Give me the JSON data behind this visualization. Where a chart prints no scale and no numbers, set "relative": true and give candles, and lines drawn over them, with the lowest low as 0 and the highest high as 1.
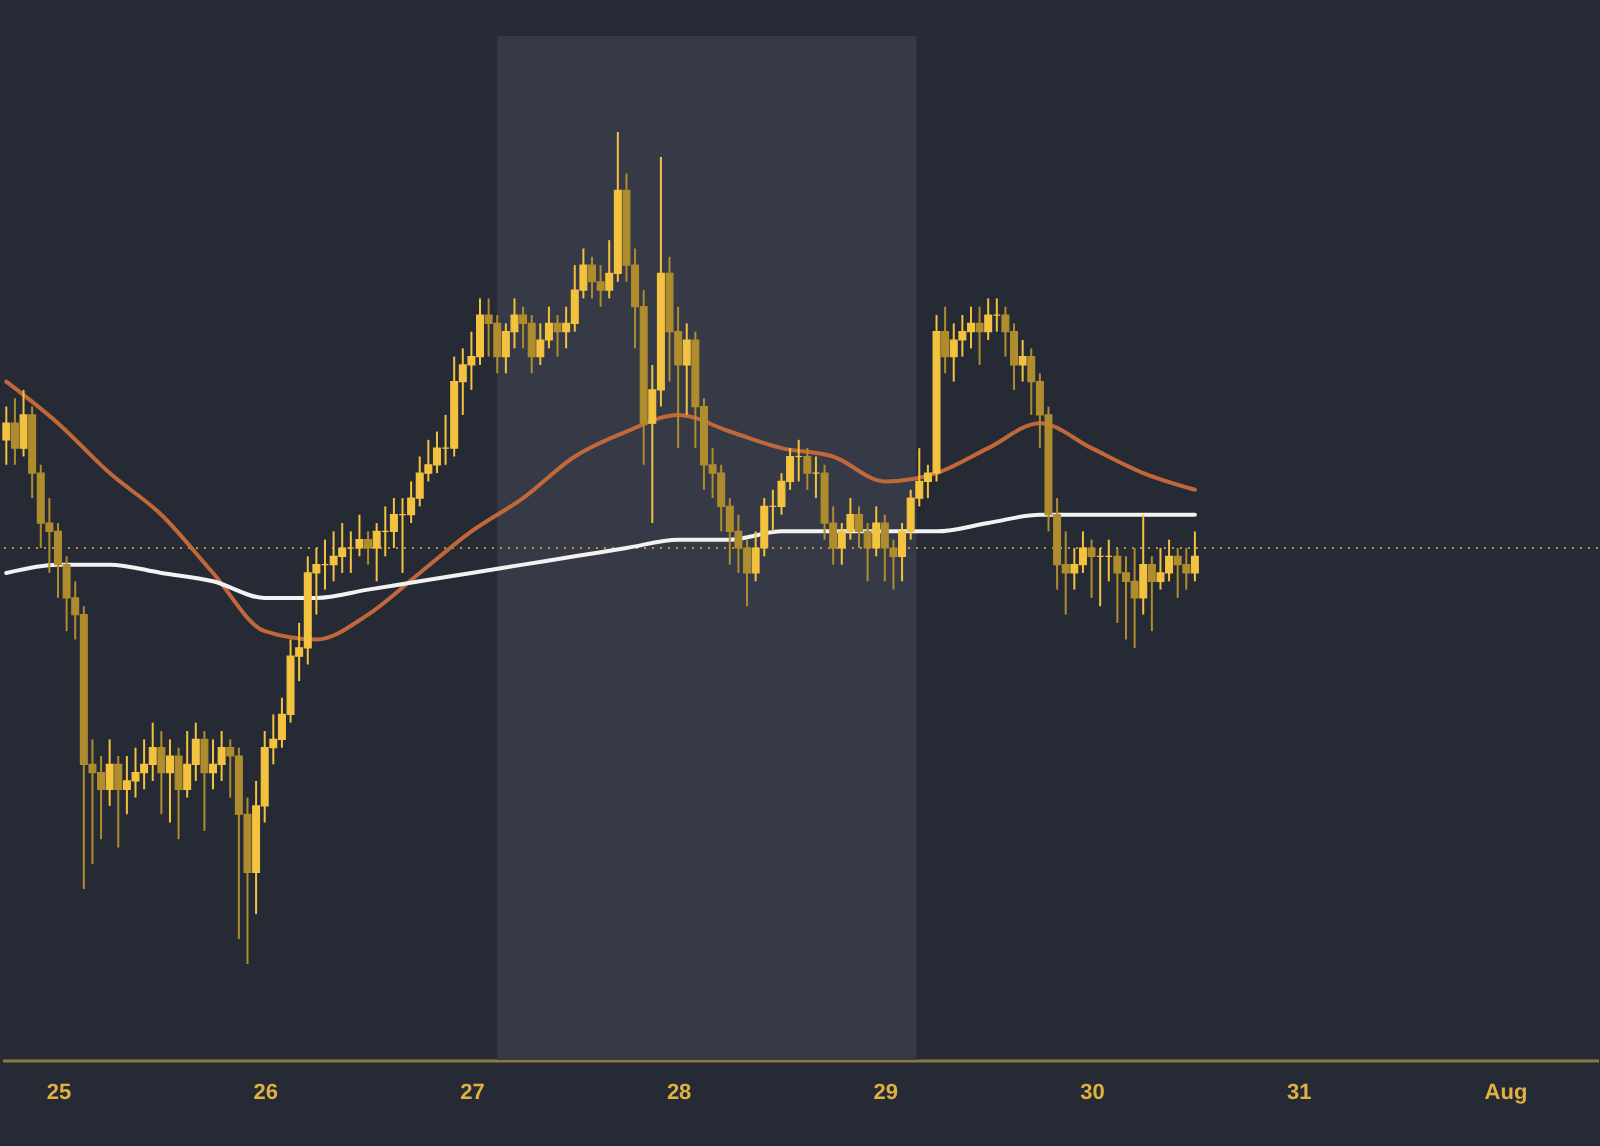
{
  "chart_data": {
    "type": "candlestick",
    "relative": true,
    "xlim": [
      "--07-24T17:30",
      "--08-01T10:48"
    ],
    "xticks": [
      {
        "value": "--07-25",
        "label": "25"
      },
      {
        "value": "--07-26",
        "label": "26"
      },
      {
        "value": "--07-27",
        "label": "27"
      },
      {
        "value": "--07-28",
        "label": "28"
      },
      {
        "value": "--07-29",
        "label": "29"
      },
      {
        "value": "--07-30",
        "label": "30"
      },
      {
        "value": "--07-31",
        "label": "31"
      },
      {
        "value": "--08-01",
        "label": "Aug"
      }
    ],
    "bands": [
      {
        "axis": "x",
        "from": "--07-27T03:00",
        "to": "--07-29T03:40",
        "color": "#353a46"
      }
    ],
    "ref_lines": [
      {
        "axis": "y",
        "value": 0.5,
        "color": "#c98a3c",
        "line_style": "dotted"
      }
    ],
    "series": [
      {
        "type": "line",
        "color": "#c0683a",
        "x": [
          "--07-24T18:00",
          "--07-25T00:00",
          "--07-25T06:00",
          "--07-25T12:00",
          "--07-25T18:00",
          "--07-26T00:00",
          "--07-26T06:00",
          "--07-26T12:00",
          "--07-26T18:00",
          "--07-27T00:00",
          "--07-27T06:00",
          "--07-27T12:00",
          "--07-27T18:00",
          "--07-28T00:00",
          "--07-28T06:00",
          "--07-28T12:00",
          "--07-28T18:00",
          "--07-29T00:00",
          "--07-29T06:00",
          "--07-29T12:00",
          "--07-29T18:00",
          "--07-30T00:00",
          "--07-30T06:00",
          "--07-30T12:00"
        ],
        "values": [
          0.7,
          0.65,
          0.59,
          0.54,
          0.47,
          0.4,
          0.39,
          0.42,
          0.47,
          0.52,
          0.56,
          0.61,
          0.64,
          0.66,
          0.64,
          0.62,
          0.61,
          0.58,
          0.59,
          0.62,
          0.65,
          0.62,
          0.59,
          0.57
        ]
      },
      {
        "type": "line",
        "color": "#f2f2f2",
        "x": [
          "--07-24T18:00",
          "--07-25T00:00",
          "--07-25T06:00",
          "--07-25T12:00",
          "--07-25T18:00",
          "--07-26T00:00",
          "--07-26T06:00",
          "--07-26T12:00",
          "--07-26T18:00",
          "--07-27T00:00",
          "--07-27T06:00",
          "--07-27T12:00",
          "--07-27T18:00",
          "--07-28T00:00",
          "--07-28T06:00",
          "--07-28T12:00",
          "--07-28T18:00",
          "--07-29T00:00",
          "--07-29T06:00",
          "--07-29T12:00",
          "--07-29T18:00",
          "--07-30T00:00",
          "--07-30T06:00",
          "--07-30T12:00"
        ],
        "values": [
          0.47,
          0.48,
          0.48,
          0.47,
          0.46,
          0.44,
          0.44,
          0.45,
          0.46,
          0.47,
          0.48,
          0.49,
          0.5,
          0.51,
          0.51,
          0.52,
          0.52,
          0.52,
          0.52,
          0.53,
          0.54,
          0.54,
          0.54,
          0.54
        ]
      },
      {
        "colors": [
          "#f3c23f",
          "#af8c2d",
          "#f3c23f",
          "#af8c2d",
          "#af8c2d",
          "#af8c2d",
          "#af8c2d",
          "#af8c2d",
          "#af8c2d",
          "#af8c2d",
          "#af8c2d",
          "#af8c2d",
          "#f3c23f",
          "#af8c2d",
          "#f3c23f",
          "#f3c23f",
          "#f3c23f",
          "#f3c23f",
          "#af8c2d",
          "#f3c23f",
          "#af8c2d",
          "#f3c23f",
          "#f3c23f",
          "#af8c2d",
          "#f3c23f",
          "#f3c23f",
          "#af8c2d",
          "#af8c2d",
          "#af8c2d",
          "#f3c23f",
          "#f3c23f",
          "#f3c23f",
          "#f3c23f",
          "#f3c23f",
          "#f3c23f",
          "#f3c23f",
          "#f3c23f",
          "#f3c23f",
          "#f3c23f",
          "#f3c23f",
          "#f3c23f",
          "#f3c23f",
          "#af8c2d",
          "#f3c23f",
          "#f3c23f",
          "#f3c23f",
          "#f3c23f",
          "#f3c23f",
          "#f3c23f",
          "#f3c23f",
          "#f3c23f",
          "#f3c23f",
          "#f3c23f",
          "#f3c23f",
          "#f3c23f",
          "#f3c23f",
          "#af8c2d",
          "#af8c2d",
          "#f3c23f",
          "#f3c23f",
          "#af8c2d",
          "#af8c2d",
          "#f3c23f",
          "#f3c23f",
          "#af8c2d",
          "#f3c23f",
          "#f3c23f",
          "#f3c23f",
          "#af8c2d",
          "#af8c2d",
          "#f3c23f",
          "#f3c23f",
          "#af8c2d",
          "#af8c2d",
          "#af8c2d",
          "#f3c23f",
          "#f3c23f",
          "#af8c2d",
          "#af8c2d",
          "#f3c23f",
          "#af8c2d",
          "#af8c2d",
          "#af8c2d",
          "#af8c2d",
          "#af8c2d",
          "#af8c2d",
          "#af8c2d",
          "#f3c23f",
          "#f3c23f",
          "#f3c23f",
          "#f3c23f",
          "#f3c23f",
          "#f3c23f",
          "#af8c2d",
          "#f3c23f",
          "#af8c2d",
          "#af8c2d",
          "#f3c23f",
          "#f3c23f",
          "#af8c2d",
          "#af8c2d",
          "#f3c23f",
          "#af8c2d",
          "#af8c2d",
          "#f3c23f",
          "#f3c23f",
          "#f3c23f",
          "#f3c23f",
          "#f3c23f",
          "#af8c2d",
          "#f3c23f",
          "#f3c23f",
          "#f3c23f",
          "#af8c2d",
          "#f3c23f",
          "#f3c23f",
          "#af8c2d",
          "#af8c2d",
          "#f3c23f",
          "#af8c2d",
          "#af8c2d",
          "#af8c2d",
          "#af8c2d",
          "#af8c2d",
          "#f3c23f",
          "#f3c23f",
          "#af8c2d",
          "#f3c23f",
          "#f3c23f",
          "#af8c2d",
          "#af8c2d",
          "#af8c2d",
          "#f3c23f",
          "#af8c2d",
          "#f3c23f",
          "#f3c23f",
          "#af8c2d",
          "#af8c2d",
          "#f3c23f"
        ],
        "x": [
          "--07-24T18:00",
          "--07-24T19:00",
          "--07-24T20:00",
          "--07-24T21:00",
          "--07-24T22:00",
          "--07-24T23:00",
          "--07-25T00:00",
          "--07-25T01:00",
          "--07-25T02:00",
          "--07-25T03:00",
          "--07-25T04:00",
          "--07-25T05:00",
          "--07-25T06:00",
          "--07-25T07:00",
          "--07-25T08:00",
          "--07-25T09:00",
          "--07-25T10:00",
          "--07-25T11:00",
          "--07-25T12:00",
          "--07-25T13:00",
          "--07-25T14:00",
          "--07-25T15:00",
          "--07-25T16:00",
          "--07-25T17:00",
          "--07-25T18:00",
          "--07-25T19:00",
          "--07-25T20:00",
          "--07-25T21:00",
          "--07-25T22:00",
          "--07-25T23:00",
          "--07-26T00:00",
          "--07-26T01:00",
          "--07-26T02:00",
          "--07-26T03:00",
          "--07-26T04:00",
          "--07-26T05:00",
          "--07-26T06:00",
          "--07-26T07:00",
          "--07-26T08:00",
          "--07-26T09:00",
          "--07-26T10:00",
          "--07-26T11:00",
          "--07-26T12:00",
          "--07-26T13:00",
          "--07-26T14:00",
          "--07-26T15:00",
          "--07-26T16:00",
          "--07-26T17:00",
          "--07-26T18:00",
          "--07-26T19:00",
          "--07-26T20:00",
          "--07-26T21:00",
          "--07-26T22:00",
          "--07-26T23:00",
          "--07-27T00:00",
          "--07-27T01:00",
          "--07-27T02:00",
          "--07-27T03:00",
          "--07-27T04:00",
          "--07-27T05:00",
          "--07-27T06:00",
          "--07-27T07:00",
          "--07-27T08:00",
          "--07-27T09:00",
          "--07-27T10:00",
          "--07-27T11:00",
          "--07-27T12:00",
          "--07-27T13:00",
          "--07-27T14:00",
          "--07-27T15:00",
          "--07-27T16:00",
          "--07-27T17:00",
          "--07-27T18:00",
          "--07-27T19:00",
          "--07-27T20:00",
          "--07-27T21:00",
          "--07-27T22:00",
          "--07-27T23:00",
          "--07-28T00:00",
          "--07-28T01:00",
          "--07-28T02:00",
          "--07-28T03:00",
          "--07-28T04:00",
          "--07-28T05:00",
          "--07-28T06:00",
          "--07-28T07:00",
          "--07-28T08:00",
          "--07-28T09:00",
          "--07-28T10:00",
          "--07-28T11:00",
          "--07-28T12:00",
          "--07-28T13:00",
          "--07-28T14:00",
          "--07-28T15:00",
          "--07-28T16:00",
          "--07-28T17:00",
          "--07-28T18:00",
          "--07-28T19:00",
          "--07-28T20:00",
          "--07-28T21:00",
          "--07-28T22:00",
          "--07-28T23:00",
          "--07-29T00:00",
          "--07-29T01:00",
          "--07-29T02:00",
          "--07-29T03:00",
          "--07-29T04:00",
          "--07-29T05:00",
          "--07-29T06:00",
          "--07-29T07:00",
          "--07-29T08:00",
          "--07-29T09:00",
          "--07-29T10:00",
          "--07-29T11:00",
          "--07-29T12:00",
          "--07-29T13:00",
          "--07-29T14:00",
          "--07-29T15:00",
          "--07-29T16:00",
          "--07-29T17:00",
          "--07-29T18:00",
          "--07-29T19:00",
          "--07-29T20:00",
          "--07-29T21:00",
          "--07-29T22:00",
          "--07-29T23:00",
          "--07-30T00:00",
          "--07-30T01:00",
          "--07-30T02:00",
          "--07-30T03:00",
          "--07-30T04:00",
          "--07-30T05:00",
          "--07-30T06:00",
          "--07-30T07:00",
          "--07-30T08:00",
          "--07-30T09:00",
          "--07-30T10:00",
          "--07-30T11:00",
          "--07-30T12:00"
        ],
        "ohlc": [
          [
            0.63,
            0.67,
            0.6,
            0.65
          ],
          [
            0.65,
            0.68,
            0.6,
            0.62
          ],
          [
            0.62,
            0.69,
            0.61,
            0.66
          ],
          [
            0.66,
            0.67,
            0.56,
            0.59
          ],
          [
            0.59,
            0.6,
            0.5,
            0.53
          ],
          [
            0.53,
            0.56,
            0.47,
            0.52
          ],
          [
            0.52,
            0.53,
            0.44,
            0.48
          ],
          [
            0.48,
            0.49,
            0.4,
            0.44
          ],
          [
            0.44,
            0.46,
            0.39,
            0.42
          ],
          [
            0.42,
            0.43,
            0.09,
            0.24
          ],
          [
            0.24,
            0.27,
            0.12,
            0.23
          ],
          [
            0.23,
            0.25,
            0.15,
            0.21
          ],
          [
            0.21,
            0.27,
            0.19,
            0.24
          ],
          [
            0.24,
            0.25,
            0.14,
            0.21
          ],
          [
            0.21,
            0.25,
            0.18,
            0.22
          ],
          [
            0.22,
            0.26,
            0.2,
            0.23
          ],
          [
            0.23,
            0.27,
            0.21,
            0.24
          ],
          [
            0.24,
            0.29,
            0.22,
            0.26
          ],
          [
            0.26,
            0.28,
            0.18,
            0.23
          ],
          [
            0.23,
            0.27,
            0.17,
            0.25
          ],
          [
            0.25,
            0.26,
            0.15,
            0.21
          ],
          [
            0.21,
            0.28,
            0.2,
            0.24
          ],
          [
            0.24,
            0.29,
            0.22,
            0.27
          ],
          [
            0.27,
            0.28,
            0.16,
            0.23
          ],
          [
            0.23,
            0.27,
            0.21,
            0.24
          ],
          [
            0.24,
            0.28,
            0.22,
            0.26
          ],
          [
            0.26,
            0.27,
            0.2,
            0.25
          ],
          [
            0.25,
            0.26,
            0.03,
            0.18
          ],
          [
            0.18,
            0.2,
            0,
            0.11
          ],
          [
            0.11,
            0.22,
            0.06,
            0.19
          ],
          [
            0.19,
            0.28,
            0.17,
            0.26
          ],
          [
            0.26,
            0.3,
            0.24,
            0.27
          ],
          [
            0.27,
            0.32,
            0.26,
            0.3
          ],
          [
            0.3,
            0.39,
            0.29,
            0.37
          ],
          [
            0.37,
            0.41,
            0.34,
            0.38
          ],
          [
            0.38,
            0.49,
            0.36,
            0.47
          ],
          [
            0.47,
            0.5,
            0.42,
            0.48
          ],
          [
            0.48,
            0.51,
            0.45,
            0.48
          ],
          [
            0.48,
            0.52,
            0.46,
            0.49
          ],
          [
            0.49,
            0.53,
            0.47,
            0.5
          ],
          [
            0.5,
            0.52,
            0.47,
            0.5
          ],
          [
            0.5,
            0.54,
            0.49,
            0.51
          ],
          [
            0.51,
            0.52,
            0.48,
            0.5
          ],
          [
            0.5,
            0.53,
            0.46,
            0.52
          ],
          [
            0.52,
            0.55,
            0.49,
            0.52
          ],
          [
            0.52,
            0.56,
            0.5,
            0.54
          ],
          [
            0.54,
            0.56,
            0.47,
            0.54
          ],
          [
            0.54,
            0.58,
            0.53,
            0.56
          ],
          [
            0.56,
            0.61,
            0.55,
            0.59
          ],
          [
            0.59,
            0.63,
            0.58,
            0.6
          ],
          [
            0.6,
            0.64,
            0.59,
            0.62
          ],
          [
            0.62,
            0.66,
            0.6,
            0.62
          ],
          [
            0.62,
            0.73,
            0.61,
            0.7
          ],
          [
            0.7,
            0.74,
            0.66,
            0.72
          ],
          [
            0.72,
            0.76,
            0.69,
            0.73
          ],
          [
            0.73,
            0.8,
            0.72,
            0.78
          ],
          [
            0.78,
            0.8,
            0.73,
            0.77
          ],
          [
            0.77,
            0.78,
            0.71,
            0.73
          ],
          [
            0.73,
            0.77,
            0.71,
            0.76
          ],
          [
            0.76,
            0.8,
            0.74,
            0.78
          ],
          [
            0.78,
            0.79,
            0.74,
            0.77
          ],
          [
            0.77,
            0.78,
            0.71,
            0.73
          ],
          [
            0.73,
            0.77,
            0.72,
            0.75
          ],
          [
            0.75,
            0.79,
            0.74,
            0.77
          ],
          [
            0.77,
            0.78,
            0.73,
            0.76
          ],
          [
            0.76,
            0.79,
            0.74,
            0.77
          ],
          [
            0.77,
            0.84,
            0.76,
            0.81
          ],
          [
            0.81,
            0.86,
            0.8,
            0.84
          ],
          [
            0.84,
            0.85,
            0.8,
            0.82
          ],
          [
            0.82,
            0.84,
            0.79,
            0.81
          ],
          [
            0.81,
            0.87,
            0.8,
            0.83
          ],
          [
            0.83,
            1,
            0.82,
            0.93
          ],
          [
            0.93,
            0.95,
            0.82,
            0.84
          ],
          [
            0.84,
            0.86,
            0.74,
            0.79
          ],
          [
            0.79,
            0.81,
            0.6,
            0.65
          ],
          [
            0.65,
            0.72,
            0.53,
            0.69
          ],
          [
            0.69,
            0.97,
            0.67,
            0.83
          ],
          [
            0.83,
            0.85,
            0.7,
            0.76
          ],
          [
            0.76,
            0.79,
            0.62,
            0.72
          ],
          [
            0.72,
            0.77,
            0.66,
            0.75
          ],
          [
            0.75,
            0.76,
            0.62,
            0.67
          ],
          [
            0.67,
            0.68,
            0.57,
            0.6
          ],
          [
            0.6,
            0.62,
            0.56,
            0.59
          ],
          [
            0.59,
            0.6,
            0.52,
            0.55
          ],
          [
            0.55,
            0.56,
            0.48,
            0.52
          ],
          [
            0.52,
            0.54,
            0.47,
            0.5
          ],
          [
            0.5,
            0.51,
            0.43,
            0.47
          ],
          [
            0.47,
            0.52,
            0.46,
            0.5
          ],
          [
            0.5,
            0.56,
            0.49,
            0.55
          ],
          [
            0.55,
            0.57,
            0.52,
            0.55
          ],
          [
            0.55,
            0.59,
            0.54,
            0.58
          ],
          [
            0.58,
            0.62,
            0.57,
            0.61
          ],
          [
            0.61,
            0.63,
            0.58,
            0.61
          ],
          [
            0.61,
            0.62,
            0.57,
            0.59
          ],
          [
            0.59,
            0.61,
            0.56,
            0.59
          ],
          [
            0.59,
            0.6,
            0.51,
            0.53
          ],
          [
            0.53,
            0.55,
            0.48,
            0.5
          ],
          [
            0.5,
            0.53,
            0.48,
            0.52
          ],
          [
            0.52,
            0.56,
            0.51,
            0.54
          ],
          [
            0.54,
            0.55,
            0.5,
            0.52
          ],
          [
            0.52,
            0.53,
            0.46,
            0.5
          ],
          [
            0.5,
            0.55,
            0.49,
            0.53
          ],
          [
            0.53,
            0.54,
            0.46,
            0.5
          ],
          [
            0.5,
            0.51,
            0.45,
            0.49
          ],
          [
            0.49,
            0.53,
            0.46,
            0.52
          ],
          [
            0.52,
            0.57,
            0.51,
            0.56
          ],
          [
            0.56,
            0.62,
            0.55,
            0.58
          ],
          [
            0.58,
            0.6,
            0.56,
            0.59
          ],
          [
            0.59,
            0.78,
            0.58,
            0.76
          ],
          [
            0.76,
            0.79,
            0.71,
            0.73
          ],
          [
            0.73,
            0.77,
            0.7,
            0.75
          ],
          [
            0.75,
            0.78,
            0.73,
            0.76
          ],
          [
            0.76,
            0.79,
            0.74,
            0.77
          ],
          [
            0.77,
            0.79,
            0.72,
            0.76
          ],
          [
            0.76,
            0.8,
            0.75,
            0.78
          ],
          [
            0.78,
            0.8,
            0.76,
            0.78
          ],
          [
            0.78,
            0.79,
            0.73,
            0.76
          ],
          [
            0.76,
            0.77,
            0.69,
            0.72
          ],
          [
            0.72,
            0.75,
            0.7,
            0.73
          ],
          [
            0.73,
            0.74,
            0.66,
            0.7
          ],
          [
            0.7,
            0.71,
            0.62,
            0.66
          ],
          [
            0.66,
            0.67,
            0.52,
            0.54
          ],
          [
            0.54,
            0.56,
            0.45,
            0.48
          ],
          [
            0.48,
            0.52,
            0.42,
            0.47
          ],
          [
            0.47,
            0.5,
            0.45,
            0.48
          ],
          [
            0.48,
            0.52,
            0.47,
            0.5
          ],
          [
            0.5,
            0.51,
            0.44,
            0.49
          ],
          [
            0.49,
            0.5,
            0.43,
            0.49
          ],
          [
            0.49,
            0.51,
            0.46,
            0.49
          ],
          [
            0.49,
            0.5,
            0.41,
            0.47
          ],
          [
            0.47,
            0.49,
            0.39,
            0.46
          ],
          [
            0.46,
            0.5,
            0.38,
            0.44
          ],
          [
            0.44,
            0.54,
            0.42,
            0.48
          ],
          [
            0.48,
            0.49,
            0.4,
            0.46
          ],
          [
            0.46,
            0.5,
            0.45,
            0.47
          ],
          [
            0.47,
            0.51,
            0.46,
            0.49
          ],
          [
            0.49,
            0.5,
            0.44,
            0.48
          ],
          [
            0.48,
            0.5,
            0.45,
            0.47
          ],
          [
            0.47,
            0.52,
            0.46,
            0.49
          ]
        ]
      }
    ]
  }
}
